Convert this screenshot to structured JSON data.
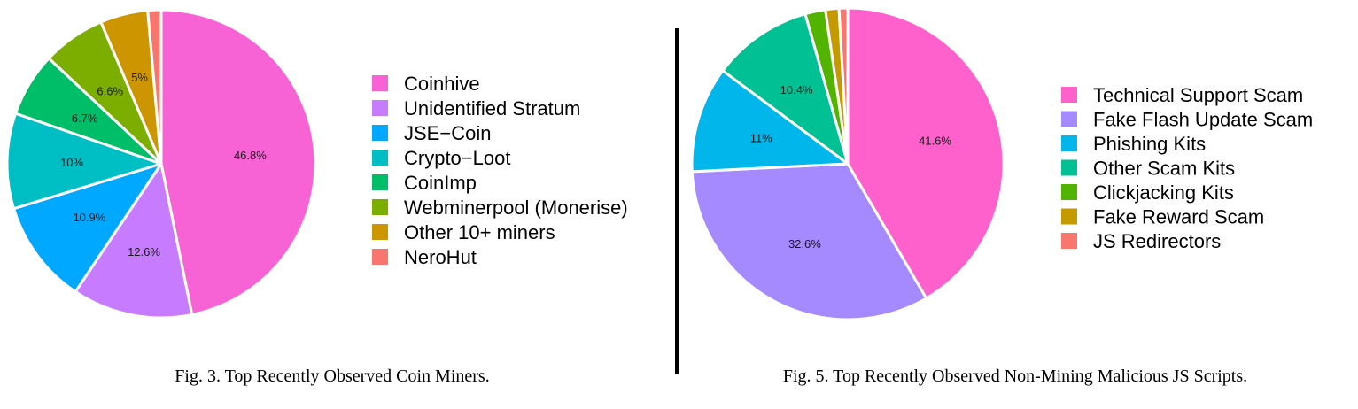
{
  "chart_data": [
    {
      "type": "pie",
      "caption": "Fig. 3.  Top Recently Observed Coin Miners.",
      "legend_position": "right",
      "slices": [
        {
          "label": "Coinhive",
          "value": 46.8,
          "text": "46.8%",
          "color": "#F763D4"
        },
        {
          "label": "Unidentified Stratum",
          "value": 12.6,
          "text": "12.6%",
          "color": "#C77CFF"
        },
        {
          "label": "JSE−Coin",
          "value": 10.9,
          "text": "10.9%",
          "color": "#00A9FF"
        },
        {
          "label": "Crypto−Loot",
          "value": 10,
          "text": "10%",
          "color": "#00BFC4"
        },
        {
          "label": "CoinImp",
          "value": 6.7,
          "text": "6.7%",
          "color": "#00BE67"
        },
        {
          "label": "Webminerpool (Monerise)",
          "value": 6.6,
          "text": "6.6%",
          "color": "#7CAE00"
        },
        {
          "label": "Other 10+ miners",
          "value": 5,
          "text": "5%",
          "color": "#CD9600"
        },
        {
          "label": "NeroHut",
          "value": 1.4,
          "text": "",
          "color": "#F8766D"
        }
      ]
    },
    {
      "type": "pie",
      "caption": "Fig. 5.  Top Recently Observed Non-Mining Malicious JS Scripts.",
      "legend_position": "right",
      "slices": [
        {
          "label": "Technical Support Scam",
          "value": 41.6,
          "text": "41.6%",
          "color": "#FF61CC"
        },
        {
          "label": "Fake Flash Update Scam",
          "value": 32.6,
          "text": "32.6%",
          "color": "#A58AFF"
        },
        {
          "label": "Phishing Kits",
          "value": 11,
          "text": "11%",
          "color": "#00B6EB"
        },
        {
          "label": "Other Scam Kits",
          "value": 10.4,
          "text": "10.4%",
          "color": "#00C094"
        },
        {
          "label": "Clickjacking Kits",
          "value": 2.1,
          "text": "",
          "color": "#53B400"
        },
        {
          "label": "Fake Reward Scam",
          "value": 1.4,
          "text": "",
          "color": "#C49A00"
        },
        {
          "label": "JS Redirectors",
          "value": 0.9,
          "text": "",
          "color": "#F8766D"
        }
      ]
    }
  ]
}
